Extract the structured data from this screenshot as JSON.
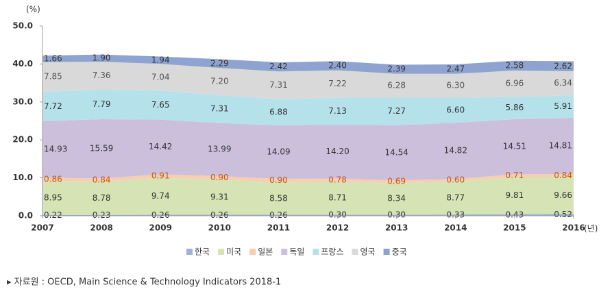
{
  "chart_data": {
    "type": "stacked-area",
    "y_unit": "(%)",
    "x_unit": "(년)",
    "x": [
      2007,
      2008,
      2009,
      2010,
      2011,
      2012,
      2013,
      2014,
      2015,
      2016
    ],
    "xlim": [
      2007,
      2016
    ],
    "ylim": [
      0,
      50
    ],
    "yticks": [
      {
        "value": 0,
        "label": "0.0"
      },
      {
        "value": 10,
        "label": "10.0"
      },
      {
        "value": 20,
        "label": "20.0"
      },
      {
        "value": 30,
        "label": "30.0"
      },
      {
        "value": 40,
        "label": "40.0"
      },
      {
        "value": 50,
        "label": "50.0"
      }
    ],
    "series": [
      {
        "name": "한국",
        "color": "#9db3d9",
        "label_color": "#333333",
        "values": [
          0.22,
          0.23,
          0.26,
          0.26,
          0.26,
          0.3,
          0.3,
          0.33,
          0.43,
          0.52
        ],
        "value_labels": [
          "0.22",
          "0.23",
          "0.26",
          "0.26",
          "0.26",
          "0.30",
          "0.30",
          "0.33",
          "0.43",
          "0.52"
        ]
      },
      {
        "name": "미국",
        "color": "#d5e3b5",
        "label_color": "#333333",
        "values": [
          8.95,
          8.78,
          9.74,
          9.31,
          8.58,
          8.71,
          8.34,
          8.77,
          9.81,
          9.66
        ],
        "value_labels": [
          "8.95",
          "8.78",
          "9.74",
          "9.31",
          "8.58",
          "8.71",
          "8.34",
          "8.77",
          "9.81",
          "9.66"
        ]
      },
      {
        "name": "일본",
        "color": "#f8cdb0",
        "label_color": "#c55a11",
        "values": [
          0.86,
          0.84,
          0.91,
          0.9,
          0.9,
          0.78,
          0.69,
          0.6,
          0.71,
          0.84
        ],
        "value_labels": [
          "0.86",
          "0.84",
          "0.91",
          "0.90",
          "0.90",
          "0.78",
          "0.69",
          "0.60",
          "0.71",
          "0.84"
        ]
      },
      {
        "name": "독일",
        "color": "#cbbfdc",
        "label_color": "#333333",
        "values": [
          14.93,
          15.59,
          14.42,
          13.99,
          14.09,
          14.2,
          14.54,
          14.82,
          14.51,
          14.81
        ],
        "value_labels": [
          "14.93",
          "15.59",
          "14.42",
          "13.99",
          "14.09",
          "14.20",
          "14.54",
          "14.82",
          "14.51",
          "14.81"
        ]
      },
      {
        "name": "프랑스",
        "color": "#b5e2ea",
        "label_color": "#333333",
        "values": [
          7.72,
          7.79,
          7.65,
          7.31,
          6.88,
          7.13,
          7.27,
          6.6,
          5.86,
          5.91
        ],
        "value_labels": [
          "7.72",
          "7.79",
          "7.65",
          "7.31",
          "6.88",
          "7.13",
          "7.27",
          "6.60",
          "5.86",
          "5.91"
        ]
      },
      {
        "name": "영국",
        "color": "#d9d9d9",
        "label_color": "#555555",
        "values": [
          7.85,
          7.36,
          7.04,
          7.2,
          7.31,
          7.22,
          6.28,
          6.3,
          6.96,
          6.34
        ],
        "value_labels": [
          "7.85",
          "7.36",
          "7.04",
          "7.20",
          "7.31",
          "7.22",
          "6.28",
          "6.30",
          "6.96",
          "6.34"
        ]
      },
      {
        "name": "중국",
        "color": "#8ea3cf",
        "label_color": "#333333",
        "values": [
          1.66,
          1.9,
          1.94,
          2.29,
          2.42,
          2.4,
          2.39,
          2.47,
          2.58,
          2.62
        ],
        "value_labels": [
          "1.66",
          "1.90",
          "1.94",
          "2.29",
          "2.42",
          "2.40",
          "2.39",
          "2.47",
          "2.58",
          "2.62"
        ]
      }
    ],
    "source": "▸ 자료원 : OECD, Main Science & Technology Indicators 2018-1"
  }
}
